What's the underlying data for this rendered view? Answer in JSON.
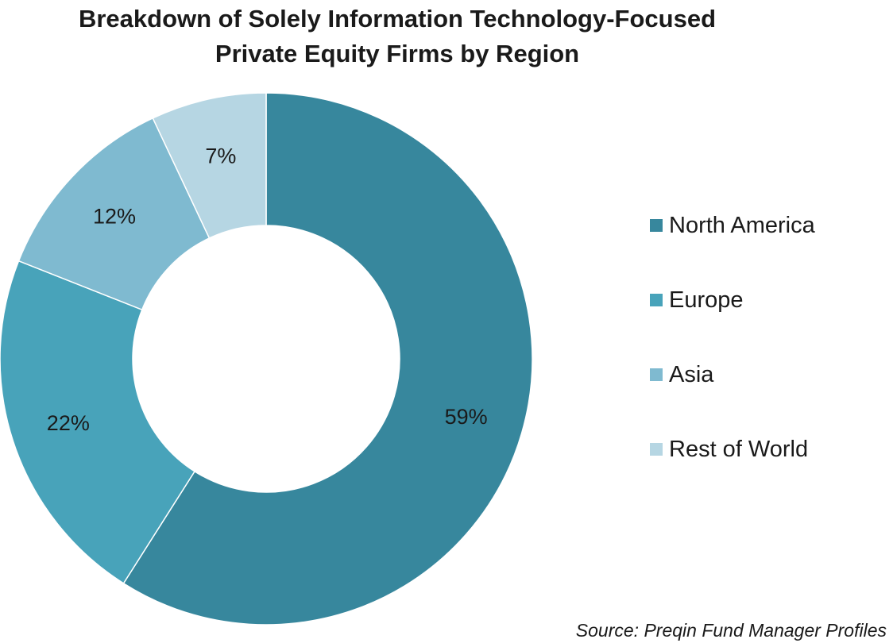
{
  "chart_data": {
    "type": "pie",
    "donut": true,
    "title_lines": [
      "Breakdown of Solely Information Technology-Focused",
      "Private Equity Firms by Region"
    ],
    "categories": [
      "North America",
      "Europe",
      "Asia",
      "Rest of World"
    ],
    "values": [
      59,
      22,
      12,
      7
    ],
    "labels": [
      "59%",
      "22%",
      "12%",
      "7%"
    ],
    "colors": [
      "#37879d",
      "#48a3ba",
      "#7fbad0",
      "#b6d6e3"
    ],
    "legend_position": "right",
    "source": "Source: Preqin Fund Manager Profiles"
  }
}
